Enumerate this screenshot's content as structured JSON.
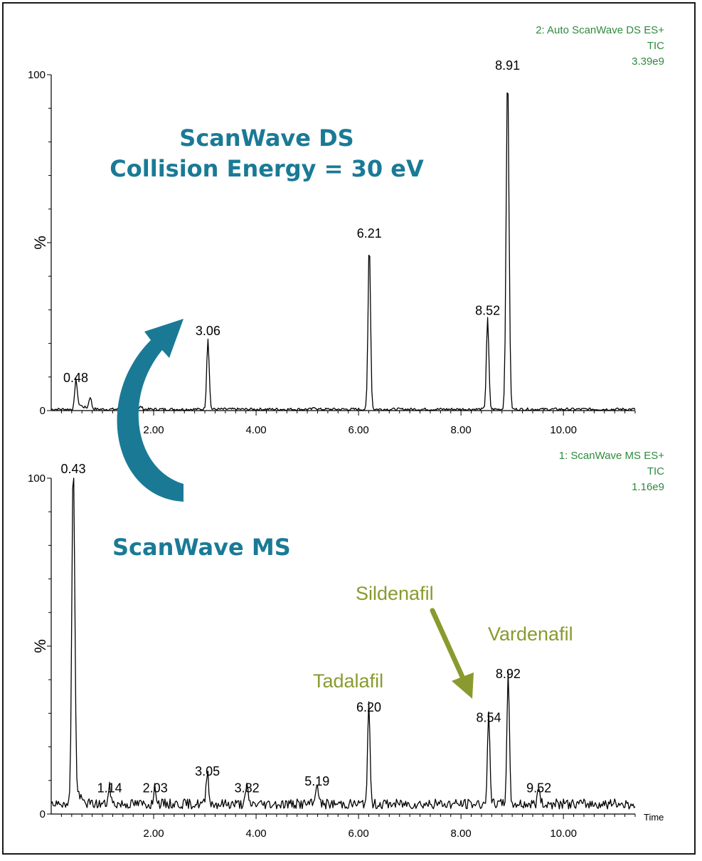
{
  "annotations": {
    "ds_title_line1": "ScanWave DS",
    "ds_title_line2": "Collision Energy = 30 eV",
    "ms_title": "ScanWave MS",
    "sildenafil": "Sildenafil",
    "vardenafil": "Vardenafil",
    "tadalafil": "Tadalafil",
    "teal_color": "#1a7a96",
    "olive_color": "#8a9a2e"
  },
  "chart_data": [
    {
      "type": "line",
      "header": [
        "2: Auto ScanWave DS ES+",
        "TIC",
        "3.39e9"
      ],
      "ylabel": "%",
      "xlabel": "",
      "xlim": [
        0,
        11.4
      ],
      "ylim": [
        0,
        100
      ],
      "x_ticks": [
        "2.00",
        "4.00",
        "6.00",
        "8.00",
        "10.00"
      ],
      "y_ticks": [
        "0",
        "100"
      ],
      "baseline": 0.4,
      "noise": 0.4,
      "peaks": [
        {
          "x": 0.48,
          "y": 7,
          "label": "0.48"
        },
        {
          "x": 0.76,
          "y": 3.5,
          "label": ""
        },
        {
          "x": 1.75,
          "y": 0.8,
          "label": ""
        },
        {
          "x": 3.06,
          "y": 21,
          "label": "3.06"
        },
        {
          "x": 5.15,
          "y": 0.6,
          "label": ""
        },
        {
          "x": 6.21,
          "y": 50,
          "label": "6.21"
        },
        {
          "x": 8.52,
          "y": 27,
          "label": "8.52"
        },
        {
          "x": 8.91,
          "y": 100,
          "label": "8.91"
        }
      ]
    },
    {
      "type": "line",
      "header": [
        "1: ScanWave MS ES+",
        "TIC",
        "1.16e9"
      ],
      "ylabel": "%",
      "xlabel": "Time",
      "xlim": [
        0,
        11.4
      ],
      "ylim": [
        0,
        100
      ],
      "x_ticks": [
        "2.00",
        "4.00",
        "6.00",
        "8.00",
        "10.00"
      ],
      "y_ticks": [
        "0",
        "100"
      ],
      "baseline": 3,
      "noise": 1.5,
      "peaks": [
        {
          "x": 0.43,
          "y": 100,
          "label": "0.43"
        },
        {
          "x": 1.14,
          "y": 5,
          "label": "1.14"
        },
        {
          "x": 2.03,
          "y": 5,
          "label": "2.03"
        },
        {
          "x": 3.05,
          "y": 10,
          "label": "3.05"
        },
        {
          "x": 3.82,
          "y": 5,
          "label": "3.82"
        },
        {
          "x": 5.19,
          "y": 7,
          "label": "5.19"
        },
        {
          "x": 6.2,
          "y": 29,
          "label": "6.20"
        },
        {
          "x": 8.54,
          "y": 26,
          "label": "8.54"
        },
        {
          "x": 8.92,
          "y": 39,
          "label": "8.92"
        },
        {
          "x": 9.52,
          "y": 5,
          "label": "9.52"
        }
      ]
    }
  ]
}
